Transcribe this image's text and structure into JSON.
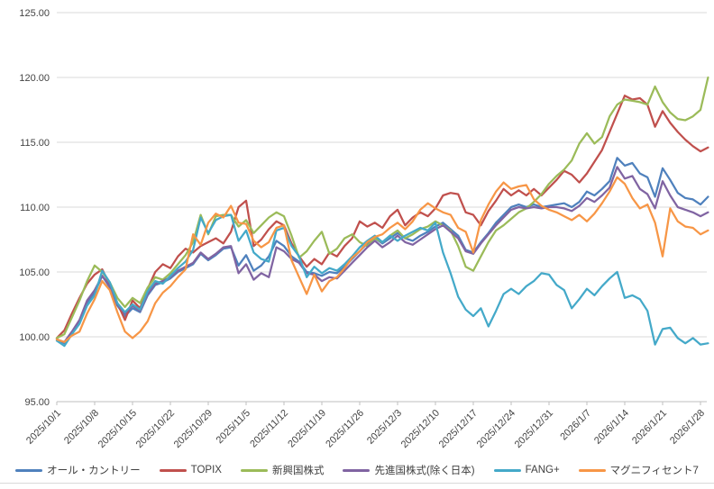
{
  "chart_data": {
    "type": "line",
    "title": "",
    "xlabel": "",
    "ylabel": "",
    "y_axis": {
      "min": 95,
      "max": 125,
      "step": 5,
      "tick_decimals": 2
    },
    "grid": "horizontal",
    "legend_position": "bottom",
    "background": "#FFFFFF",
    "gridline_color": "#D9D9D9",
    "axis_line_color": "#BFBFBF",
    "tick_label_color": "#444444",
    "x_tick_every": 5,
    "x": [
      "2025/10/1",
      "2025/10/2",
      "2025/10/3",
      "2025/10/6",
      "2025/10/7",
      "2025/10/8",
      "2025/10/9",
      "2025/10/10",
      "2025/10/13",
      "2025/10/14",
      "2025/10/15",
      "2025/10/16",
      "2025/10/17",
      "2025/10/20",
      "2025/10/21",
      "2025/10/22",
      "2025/10/23",
      "2025/10/24",
      "2025/10/27",
      "2025/10/28",
      "2025/10/29",
      "2025/10/30",
      "2025/10/31",
      "2025/11/3",
      "2025/11/4",
      "2025/11/5",
      "2025/11/6",
      "2025/11/7",
      "2025/11/10",
      "2025/11/11",
      "2025/11/12",
      "2025/11/13",
      "2025/11/14",
      "2025/11/17",
      "2025/11/18",
      "2025/11/19",
      "2025/11/20",
      "2025/11/21",
      "2025/11/24",
      "2025/11/25",
      "2025/11/26",
      "2025/11/27",
      "2025/11/28",
      "2025/12/1",
      "2025/12/2",
      "2025/12/3",
      "2025/12/4",
      "2025/12/5",
      "2025/12/8",
      "2025/12/9",
      "2025/12/10",
      "2025/12/11",
      "2025/12/12",
      "2025/12/15",
      "2025/12/16",
      "2025/12/17",
      "2025/12/18",
      "2025/12/19",
      "2025/12/22",
      "2025/12/23",
      "2025/12/24",
      "2025/12/25",
      "2025/12/26",
      "2025/12/29",
      "2025/12/30",
      "2025/12/31",
      "2026/1/1",
      "2026/1/2",
      "2026/1/5",
      "2026/1/6",
      "2026/1/7",
      "2026/1/8",
      "2026/1/9",
      "2026/1/12",
      "2026/1/13",
      "2026/1/14",
      "2026/1/15",
      "2026/1/16",
      "2026/1/19",
      "2026/1/20",
      "2026/1/21",
      "2026/1/22",
      "2026/1/23",
      "2026/1/26",
      "2026/1/27",
      "2026/1/28",
      "2026/1/29"
    ],
    "series": [
      {
        "name": "オール・カントリー",
        "color": "#4F81BD",
        "values": [
          99.8,
          99.5,
          100.3,
          101.2,
          102.6,
          103.4,
          104.7,
          103.8,
          102.4,
          101.6,
          102.2,
          101.9,
          103.2,
          104.0,
          104.2,
          104.5,
          105.0,
          105.3,
          105.6,
          106.4,
          105.9,
          106.3,
          106.8,
          106.9,
          105.5,
          106.3,
          105.1,
          105.5,
          106.2,
          107.4,
          107.0,
          106.2,
          105.8,
          105.0,
          104.9,
          104.7,
          105.0,
          104.9,
          105.4,
          106.0,
          106.6,
          107.2,
          107.6,
          107.2,
          107.6,
          108.0,
          107.6,
          107.4,
          107.8,
          108.1,
          108.5,
          108.8,
          108.3,
          107.8,
          106.7,
          106.5,
          107.3,
          108.0,
          108.8,
          109.4,
          110.0,
          110.2,
          110.0,
          110.2,
          110.0,
          110.1,
          110.2,
          110.3,
          110.0,
          110.4,
          111.2,
          110.9,
          111.4,
          112.0,
          113.8,
          113.2,
          113.4,
          112.6,
          112.3,
          110.8,
          113.0,
          112.1,
          111.1,
          110.7,
          110.6,
          110.2,
          110.8
        ]
      },
      {
        "name": "TOPIX",
        "color": "#C0504D",
        "values": [
          99.9,
          100.5,
          101.8,
          103.0,
          104.1,
          104.8,
          105.2,
          104.0,
          102.6,
          101.3,
          102.8,
          102.2,
          103.7,
          105.0,
          105.6,
          105.3,
          106.2,
          106.8,
          106.5,
          107.0,
          107.3,
          107.6,
          107.2,
          108.1,
          110.0,
          110.5,
          107.0,
          107.5,
          108.3,
          108.9,
          108.6,
          107.2,
          106.2,
          105.4,
          106.0,
          105.6,
          106.5,
          106.2,
          107.0,
          107.6,
          108.9,
          108.5,
          108.8,
          108.4,
          109.3,
          109.8,
          108.6,
          109.2,
          109.6,
          109.3,
          109.9,
          110.9,
          111.1,
          111.0,
          109.6,
          109.4,
          108.6,
          109.7,
          110.5,
          111.4,
          110.9,
          111.3,
          110.9,
          111.4,
          110.9,
          111.5,
          112.1,
          112.8,
          112.5,
          111.9,
          112.6,
          113.5,
          114.4,
          115.8,
          117.2,
          118.6,
          118.3,
          118.4,
          117.9,
          116.2,
          117.4,
          116.5,
          115.8,
          115.2,
          114.7,
          114.3,
          114.6
        ]
      },
      {
        "name": "新興国株式",
        "color": "#9BBB59",
        "values": [
          99.9,
          100.2,
          101.5,
          102.8,
          104.3,
          105.5,
          105.0,
          104.2,
          103.0,
          102.3,
          103.0,
          102.6,
          103.8,
          104.6,
          104.4,
          104.9,
          105.6,
          106.3,
          107.3,
          109.4,
          107.9,
          109.3,
          109.4,
          109.4,
          108.5,
          109.0,
          108.0,
          108.6,
          109.2,
          109.6,
          109.3,
          107.8,
          106.1,
          106.6,
          107.4,
          108.1,
          106.4,
          106.8,
          107.6,
          107.9,
          107.3,
          107.0,
          107.6,
          107.3,
          107.8,
          108.2,
          107.6,
          107.9,
          108.3,
          108.5,
          108.9,
          108.6,
          108.2,
          107.0,
          105.4,
          105.1,
          106.2,
          107.3,
          108.2,
          108.6,
          109.1,
          109.6,
          109.9,
          110.4,
          111.0,
          111.8,
          112.4,
          112.9,
          113.6,
          114.9,
          115.7,
          114.9,
          115.4,
          117.0,
          117.9,
          118.3,
          118.2,
          118.1,
          117.9,
          119.3,
          118.1,
          117.3,
          116.8,
          116.7,
          117.0,
          117.5,
          120.0
        ]
      },
      {
        "name": "先進国株式(除く日本)",
        "color": "#8064A2",
        "values": [
          99.8,
          99.6,
          100.4,
          101.3,
          102.8,
          103.6,
          104.7,
          103.9,
          102.5,
          101.8,
          102.4,
          102.0,
          103.3,
          104.1,
          104.3,
          104.6,
          105.1,
          105.4,
          105.7,
          106.5,
          106.0,
          106.4,
          106.9,
          107.0,
          104.9,
          105.6,
          104.4,
          104.9,
          104.6,
          106.9,
          106.6,
          106.0,
          105.7,
          104.9,
          104.8,
          104.3,
          104.6,
          104.5,
          105.1,
          105.7,
          106.3,
          106.9,
          107.4,
          106.9,
          107.3,
          107.8,
          107.3,
          107.1,
          107.5,
          107.9,
          108.3,
          108.6,
          108.1,
          107.6,
          106.6,
          106.4,
          107.2,
          107.9,
          108.6,
          109.2,
          109.8,
          110.0,
          109.9,
          110.0,
          109.9,
          110.0,
          110.0,
          109.9,
          109.7,
          110.1,
          110.7,
          110.4,
          110.9,
          111.5,
          113.1,
          112.2,
          112.4,
          111.4,
          111.0,
          109.9,
          112.0,
          110.9,
          110.0,
          109.8,
          109.6,
          109.3,
          109.6
        ]
      },
      {
        "name": "FANG+",
        "color": "#44A9C9",
        "values": [
          99.7,
          99.3,
          100.2,
          101.0,
          102.4,
          103.2,
          105.1,
          104.2,
          102.6,
          101.9,
          102.5,
          102.1,
          103.5,
          104.3,
          104.1,
          104.7,
          105.3,
          105.8,
          106.7,
          109.2,
          108.0,
          109.0,
          109.3,
          109.4,
          107.4,
          108.2,
          106.5,
          106.0,
          105.8,
          108.2,
          108.4,
          107.0,
          106.2,
          104.6,
          105.4,
          104.9,
          105.3,
          105.1,
          105.6,
          106.2,
          106.9,
          107.4,
          107.8,
          107.3,
          107.8,
          107.4,
          107.8,
          108.1,
          108.4,
          108.2,
          108.8,
          106.5,
          104.9,
          103.1,
          102.1,
          101.6,
          102.2,
          100.8,
          102.0,
          103.3,
          103.7,
          103.3,
          103.9,
          104.3,
          104.9,
          104.8,
          104.0,
          103.6,
          102.2,
          102.9,
          103.7,
          103.2,
          103.9,
          104.5,
          105.0,
          103.0,
          103.2,
          102.9,
          102.0,
          99.4,
          100.6,
          100.7,
          99.9,
          99.5,
          99.9,
          99.4,
          99.5
        ]
      },
      {
        "name": "マグニフィセント7",
        "color": "#F79646",
        "values": [
          99.8,
          99.6,
          100.1,
          100.4,
          101.8,
          102.9,
          104.3,
          103.6,
          101.9,
          100.4,
          99.9,
          100.4,
          101.2,
          102.6,
          103.4,
          103.9,
          104.6,
          105.2,
          107.9,
          107.1,
          108.8,
          109.5,
          109.2,
          110.1,
          108.8,
          108.7,
          107.4,
          106.9,
          107.3,
          108.4,
          108.6,
          105.9,
          104.6,
          103.3,
          104.8,
          103.5,
          104.3,
          104.6,
          105.3,
          106.1,
          106.6,
          107.3,
          107.7,
          107.9,
          108.4,
          108.8,
          108.3,
          108.9,
          109.8,
          110.3,
          109.9,
          109.6,
          109.4,
          108.4,
          108.1,
          106.5,
          109.0,
          110.2,
          111.2,
          111.9,
          111.4,
          111.6,
          111.7,
          110.6,
          110.1,
          109.8,
          109.6,
          109.3,
          109.0,
          109.4,
          108.9,
          109.5,
          110.3,
          111.2,
          112.3,
          111.8,
          110.7,
          109.9,
          110.2,
          108.8,
          106.2,
          109.9,
          108.9,
          108.5,
          108.4,
          107.9,
          108.2
        ]
      }
    ]
  }
}
